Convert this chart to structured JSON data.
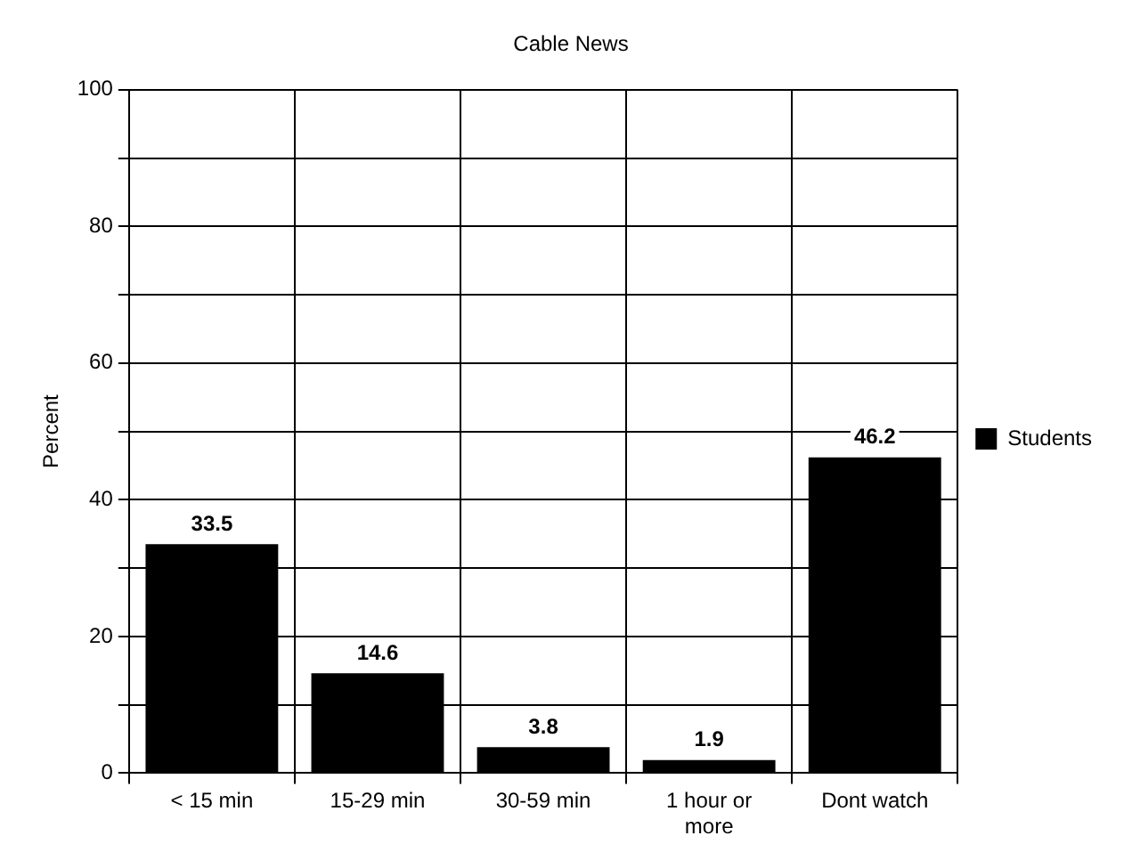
{
  "chart_data": {
    "type": "bar",
    "title": "Cable News",
    "ylabel": "Percent",
    "categories": [
      "< 15 min",
      "15-29 min",
      "30-59 min",
      "1 hour or more",
      "Dont watch"
    ],
    "series": [
      {
        "name": "Students",
        "color": "#000000",
        "values": [
          33.5,
          14.6,
          3.8,
          1.9,
          46.2
        ]
      }
    ],
    "ylim": [
      0,
      100
    ],
    "yticks": [
      0,
      {
        "value": 10,
        "label": null
      },
      20,
      {
        "value": 30,
        "label": null
      },
      40,
      {
        "value": 50,
        "label": null
      },
      60,
      {
        "value": 70,
        "label": null
      },
      80,
      {
        "value": 90,
        "label": null
      },
      100
    ],
    "grid": true,
    "legend": "right",
    "data_labels": true
  }
}
